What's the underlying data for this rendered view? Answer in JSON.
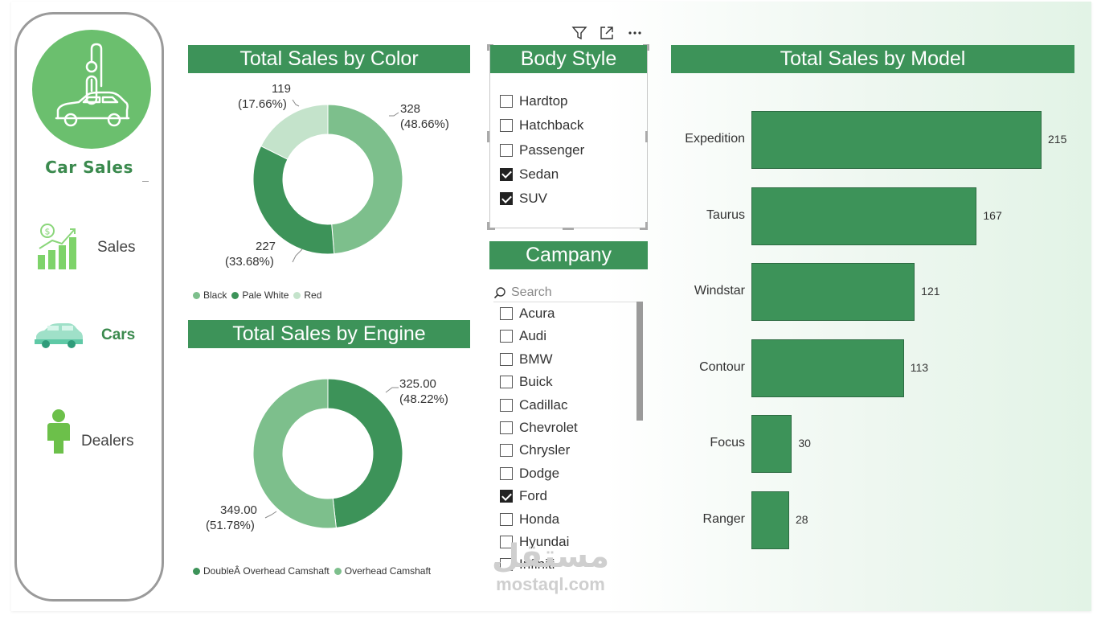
{
  "sidebar": {
    "title": "Car Sales",
    "items": [
      {
        "label": "Sales",
        "icon": "bar-chart-dollar-icon"
      },
      {
        "label": "Cars",
        "icon": "car-icon"
      },
      {
        "label": "Dealers",
        "icon": "person-icon"
      }
    ]
  },
  "color_chart": {
    "title": "Total Sales by Color",
    "labels": [
      {
        "value": "328",
        "pct": "(48.66%)"
      },
      {
        "value": "227",
        "pct": "(33.68%)"
      },
      {
        "value": "119",
        "pct": "(17.66%)"
      }
    ],
    "legend": [
      "Black",
      "Pale White",
      "Red"
    ]
  },
  "engine_chart": {
    "title": "Total Sales by Engine",
    "labels": [
      {
        "value": "325.00",
        "pct": "(48.22%)"
      },
      {
        "value": "349.00",
        "pct": "(51.78%)"
      }
    ],
    "legend": [
      "DoubleÂ Overhead Camshaft",
      "Overhead Camshaft"
    ]
  },
  "body_style_slicer": {
    "title": "Body Style",
    "items": [
      {
        "label": "Hardtop",
        "checked": false
      },
      {
        "label": "Hatchback",
        "checked": false
      },
      {
        "label": "Passenger",
        "checked": false
      },
      {
        "label": "Sedan",
        "checked": true
      },
      {
        "label": "SUV",
        "checked": true
      }
    ]
  },
  "company_slicer": {
    "title": "Campany",
    "search_placeholder": "Search",
    "items": [
      {
        "label": "Acura",
        "checked": false
      },
      {
        "label": "Audi",
        "checked": false
      },
      {
        "label": "BMW",
        "checked": false
      },
      {
        "label": "Buick",
        "checked": false
      },
      {
        "label": "Cadillac",
        "checked": false
      },
      {
        "label": "Chevrolet",
        "checked": false
      },
      {
        "label": "Chrysler",
        "checked": false
      },
      {
        "label": "Dodge",
        "checked": false
      },
      {
        "label": "Ford",
        "checked": true
      },
      {
        "label": "Honda",
        "checked": false
      },
      {
        "label": "Hyundai",
        "checked": false
      },
      {
        "label": "Infiniti",
        "checked": false
      }
    ]
  },
  "model_chart": {
    "title": "Total Sales by Model"
  },
  "colors": {
    "accent": "#3d9359",
    "light": "#7dbf8c",
    "lighter": "#c4e3cb",
    "logo": "#6bbf6e"
  },
  "watermark": {
    "arabic": "مستقل",
    "latin": "mostaql.com"
  },
  "chart_data": [
    {
      "type": "pie",
      "title": "Total Sales by Color",
      "categories": [
        "Black",
        "Pale White",
        "Red"
      ],
      "values": [
        328,
        227,
        119
      ],
      "percentages": [
        48.66,
        33.68,
        17.66
      ],
      "legend": "bottom-left"
    },
    {
      "type": "pie",
      "title": "Total Sales by Engine",
      "categories": [
        "DoubleÂ Overhead Camshaft",
        "Overhead Camshaft"
      ],
      "values": [
        325,
        349
      ],
      "percentages": [
        48.22,
        51.78
      ],
      "legend": "bottom-left"
    },
    {
      "type": "bar",
      "orientation": "horizontal",
      "title": "Total Sales by Model",
      "categories": [
        "Expedition",
        "Taurus",
        "Windstar",
        "Contour",
        "Focus",
        "Ranger"
      ],
      "values": [
        215,
        167,
        121,
        113,
        30,
        28
      ],
      "xlim": [
        0,
        215
      ]
    }
  ]
}
